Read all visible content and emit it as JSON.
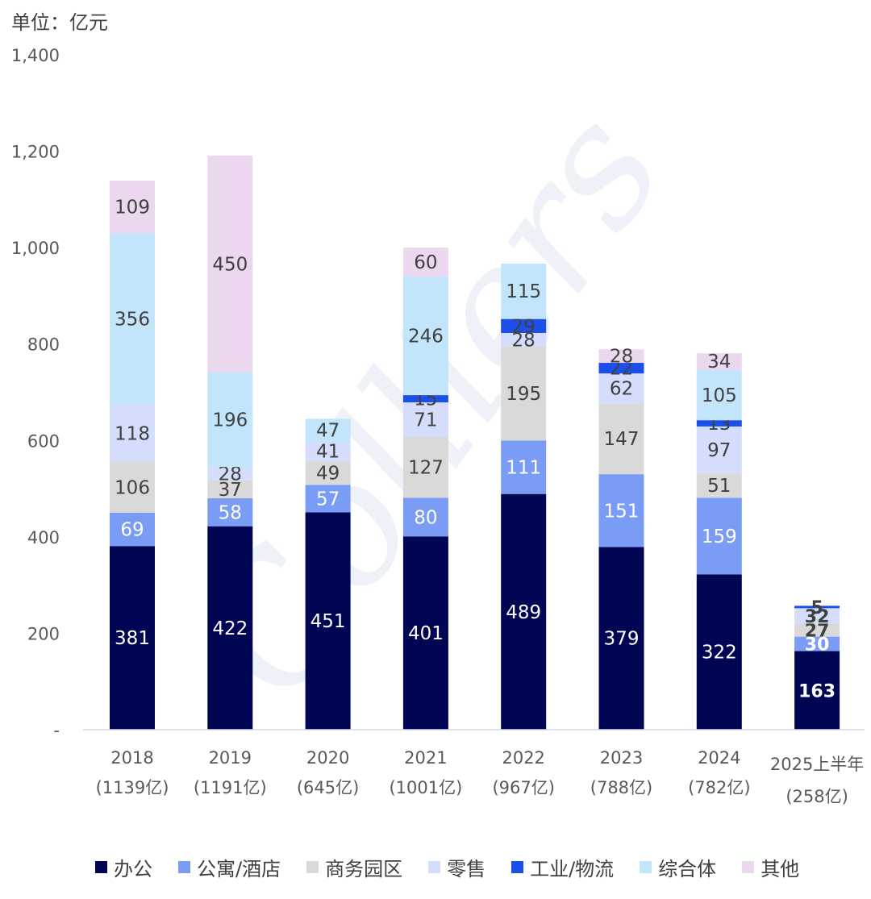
{
  "unit_title": "单位：亿元",
  "watermark": "Colliers",
  "colors": {
    "办公": "#000654",
    "公寓/酒店": "#7A9CF5",
    "商务园区": "#D9D9D9",
    "零售": "#D4DDFB",
    "工业/物流": "#1C4EEA",
    "综合体": "#C3E5FB",
    "其他": "#EBD7EE"
  },
  "chart_data": {
    "type": "bar",
    "stacked": true,
    "categories": [
      "2018",
      "2019",
      "2020",
      "2021",
      "2022",
      "2023",
      "2024",
      "2025上半年"
    ],
    "category_totals": [
      "(1139亿)",
      "(1191亿)",
      "(645亿)",
      "(1001亿)",
      "(967亿)",
      "(788亿)",
      "(782亿)",
      "(258亿)"
    ],
    "series": [
      {
        "name": "办公",
        "values": [
          381,
          422,
          451,
          401,
          489,
          379,
          322,
          163
        ]
      },
      {
        "name": "公寓/酒店",
        "values": [
          69,
          58,
          57,
          80,
          111,
          151,
          159,
          30
        ]
      },
      {
        "name": "商务园区",
        "values": [
          106,
          37,
          49,
          127,
          195,
          147,
          51,
          27
        ]
      },
      {
        "name": "零售",
        "values": [
          118,
          28,
          41,
          71,
          28,
          62,
          97,
          32
        ]
      },
      {
        "name": "工业/物流",
        "values": [
          0,
          0,
          0,
          15,
          29,
          22,
          13,
          5
        ]
      },
      {
        "name": "综合体",
        "values": [
          356,
          196,
          47,
          246,
          115,
          0,
          105,
          0
        ]
      },
      {
        "name": "其他",
        "values": [
          109,
          450,
          0,
          60,
          0,
          28,
          34,
          0
        ]
      }
    ],
    "ylim": [
      0,
      1400
    ],
    "yticks": [
      0,
      200,
      400,
      600,
      800,
      1000,
      1200,
      1400
    ],
    "ytick_labels": [
      "-",
      "200",
      "400",
      "600",
      "800",
      "1,000",
      "1,200",
      "1,400"
    ],
    "legend_position": "bottom",
    "grid": false
  }
}
